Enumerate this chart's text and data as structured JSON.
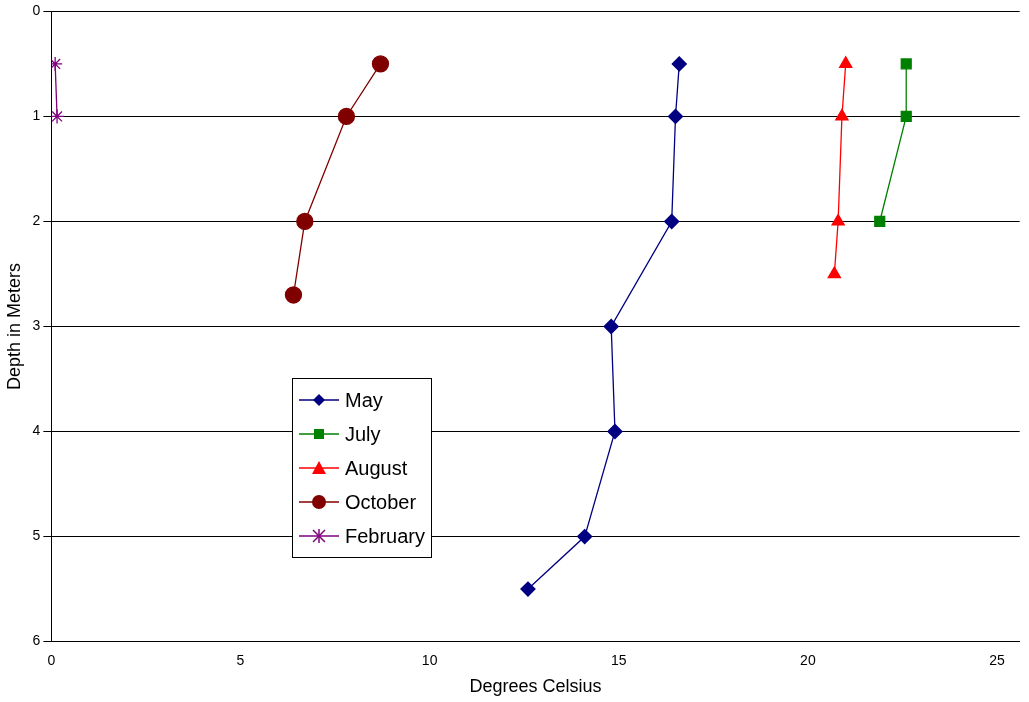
{
  "chart_data": {
    "type": "line",
    "xlabel": "Degrees Celsius",
    "ylabel": "Depth in Meters",
    "xlim": [
      0,
      25.6
    ],
    "xticks": [
      0,
      5,
      10,
      15,
      20,
      25
    ],
    "ylim": [
      6,
      0
    ],
    "yticks": [
      0,
      1,
      2,
      3,
      4,
      5,
      6
    ],
    "grid": "y",
    "legend": "left",
    "series": [
      {
        "name": "May",
        "color": "#000080",
        "marker": "diamond",
        "x": [
          16.6,
          16.5,
          16.4,
          14.8,
          14.9,
          14.1,
          12.6
        ],
        "values": [
          0.5,
          1,
          2,
          3,
          4,
          5,
          5.5
        ]
      },
      {
        "name": "July",
        "color": "#008000",
        "marker": "square",
        "x": [
          22.6,
          22.6,
          21.9
        ],
        "values": [
          0.5,
          1,
          2
        ]
      },
      {
        "name": "August",
        "color": "#ff0000",
        "marker": "triangle",
        "x": [
          21.0,
          20.9,
          20.8,
          20.7
        ],
        "values": [
          0.5,
          1,
          2,
          2.5
        ]
      },
      {
        "name": "October",
        "color": "#800000",
        "marker": "circle",
        "x": [
          8.7,
          7.8,
          6.7,
          6.4
        ],
        "values": [
          0.5,
          1,
          2,
          2.7
        ]
      },
      {
        "name": "February",
        "color": "#800080",
        "marker": "cross",
        "x": [
          0.1,
          0.15
        ],
        "values": [
          0.5,
          1
        ]
      }
    ]
  }
}
